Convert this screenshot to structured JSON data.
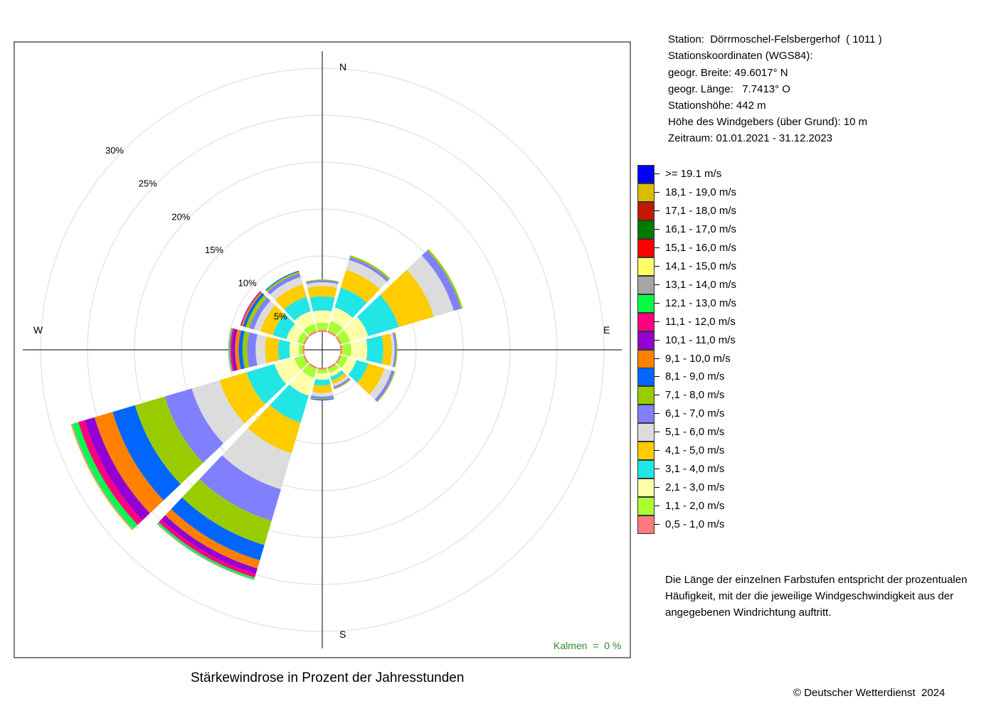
{
  "station_info": [
    "Station:  Dörrmoschel-Felsbergerhof  ( 1011 )",
    "Stationskoordinaten (WGS84):",
    "geogr. Breite: 49.6017° N",
    "geogr. Länge:   7.7413° O",
    "Stationshöhe: 442 m",
    "Höhe des Windgebers (über Grund): 10 m",
    "Zeitraum: 01.01.2021 - 31.12.2023"
  ],
  "explanation": [
    "Die Länge der einzelnen Farbstufen entspricht der prozentualen",
    "Häufigkeit, mit der die jeweilige Windgeschwindigkeit aus der",
    "angegebenen Windrichtung auftritt."
  ],
  "calm_label": "Kalmen  =  0 %",
  "copyright": "© Deutscher Wetterdienst  2024",
  "chart_data": {
    "type": "windrose",
    "title": "Stärkewindrose in Prozent der Jahresstunden",
    "unit": "%",
    "rlim": [
      0,
      30
    ],
    "inner_hole_percent": 2,
    "ring_ticks": [
      5,
      10,
      15,
      20,
      25,
      30
    ],
    "ring_labels": [
      "5%",
      "10%",
      "15%",
      "20%",
      "25%",
      "30%"
    ],
    "directions": [
      "N",
      "E",
      "S",
      "W"
    ],
    "sector_count": 12,
    "legend": [
      {
        "label": ">= 19.1 m/s",
        "color": "#0000ff"
      },
      {
        "label": "18,1 - 19,0 m/s",
        "color": "#ddbb00"
      },
      {
        "label": "17,1 - 18,0 m/s",
        "color": "#c01a00"
      },
      {
        "label": "16,1 - 17,0 m/s",
        "color": "#007a00"
      },
      {
        "label": "15,1 - 16,0 m/s",
        "color": "#ff0000"
      },
      {
        "label": "14,1 - 15,0 m/s",
        "color": "#ffff66"
      },
      {
        "label": "13,1 - 14,0 m/s",
        "color": "#a6a6a6"
      },
      {
        "label": "12,1 - 13,0 m/s",
        "color": "#00ff44"
      },
      {
        "label": "11,1 - 12,0 m/s",
        "color": "#ff0080"
      },
      {
        "label": "10,1 - 11,0 m/s",
        "color": "#9400d3"
      },
      {
        "label": "9,1 - 10,0 m/s",
        "color": "#ff8000"
      },
      {
        "label": "8,1 - 9,0 m/s",
        "color": "#0066ff"
      },
      {
        "label": "7,1 - 8,0 m/s",
        "color": "#99cc00"
      },
      {
        "label": "6,1 - 7,0 m/s",
        "color": "#8080ff"
      },
      {
        "label": "5,1 - 6,0 m/s",
        "color": "#dcdcdc"
      },
      {
        "label": "4,1 - 5,0 m/s",
        "color": "#ffcc00"
      },
      {
        "label": "3,1 - 4,0 m/s",
        "color": "#22e5e5"
      },
      {
        "label": "2,1 - 3,0 m/s",
        "color": "#ffffaa"
      },
      {
        "label": "1,1 - 2,0 m/s",
        "color": "#aaff33"
      },
      {
        "label": "0,5 - 1,0 m/s",
        "color": "#ff7a7a"
      }
    ],
    "speed_bins_ascending": [
      "0,5 - 1,0 m/s",
      "1,1 - 2,0 m/s",
      "2,1 - 3,0 m/s",
      "3,1 - 4,0 m/s",
      "4,1 - 5,0 m/s",
      "5,1 - 6,0 m/s",
      "6,1 - 7,0 m/s",
      "7,1 - 8,0 m/s",
      "8,1 - 9,0 m/s",
      "9,1 - 10,0 m/s",
      "10,1 - 11,0 m/s",
      "11,1 - 12,0 m/s",
      "12,1 - 13,0 m/s",
      "13,1 - 14,0 m/s",
      "14,1 - 15,0 m/s",
      "15,1 - 16,0 m/s",
      "16,1 - 17,0 m/s",
      "17,1 - 18,0 m/s",
      "18,1 - 19,0 m/s",
      ">= 19.1 m/s"
    ],
    "sectors": [
      {
        "direction_deg": 0,
        "cumulative": [
          2.1,
          2.9,
          4.2,
          5.7,
          6.8,
          7.2,
          7.4,
          7.5
        ]
      },
      {
        "direction_deg": 30,
        "cumulative": [
          2.1,
          3.2,
          4.7,
          6.9,
          8.9,
          10.0,
          10.3,
          10.5
        ]
      },
      {
        "direction_deg": 60,
        "cumulative": [
          2.1,
          3.1,
          5.1,
          8.5,
          12.4,
          14.6,
          15.4,
          15.6
        ]
      },
      {
        "direction_deg": 90,
        "cumulative": [
          2.1,
          3.1,
          4.8,
          6.5,
          7.4,
          7.7,
          7.9,
          8.0
        ]
      },
      {
        "direction_deg": 120,
        "cumulative": [
          2.1,
          2.8,
          3.8,
          5.1,
          6.9,
          7.7,
          8.0,
          8.1
        ]
      },
      {
        "direction_deg": 150,
        "cumulative": [
          2.1,
          2.6,
          3.0,
          3.4,
          3.8,
          4.1,
          4.3,
          4.4
        ]
      },
      {
        "direction_deg": 180,
        "cumulative": [
          2.1,
          2.5,
          3.2,
          3.8,
          4.6,
          5.0,
          5.2,
          5.3,
          5.4
        ]
      },
      {
        "direction_deg": 210,
        "cumulative": [
          2.1,
          3.1,
          5.1,
          8.1,
          11.5,
          15.5,
          19.0,
          21.7,
          23.4,
          24.3,
          24.9,
          25.3,
          25.5,
          25.6
        ]
      },
      {
        "direction_deg": 240,
        "cumulative": [
          2.1,
          3.1,
          5.3,
          8.4,
          11.4,
          14.5,
          17.5,
          20.8,
          23.3,
          25.3,
          26.4,
          27.1,
          27.7,
          27.9,
          28.0
        ]
      },
      {
        "direction_deg": 270,
        "cumulative": [
          2.1,
          2.5,
          3.5,
          4.7,
          6.1,
          7.1,
          8.0,
          8.5,
          8.9,
          9.3,
          9.6,
          9.8,
          9.9,
          10.0
        ]
      },
      {
        "direction_deg": 300,
        "cumulative": [
          2.1,
          2.8,
          4.0,
          5.5,
          6.9,
          7.6,
          8.1,
          8.5,
          8.8,
          9.0,
          9.1
        ]
      },
      {
        "direction_deg": 330,
        "cumulative": [
          2.1,
          2.9,
          4.3,
          5.9,
          7.3,
          8.1,
          8.5,
          8.7,
          8.8
        ]
      }
    ]
  }
}
